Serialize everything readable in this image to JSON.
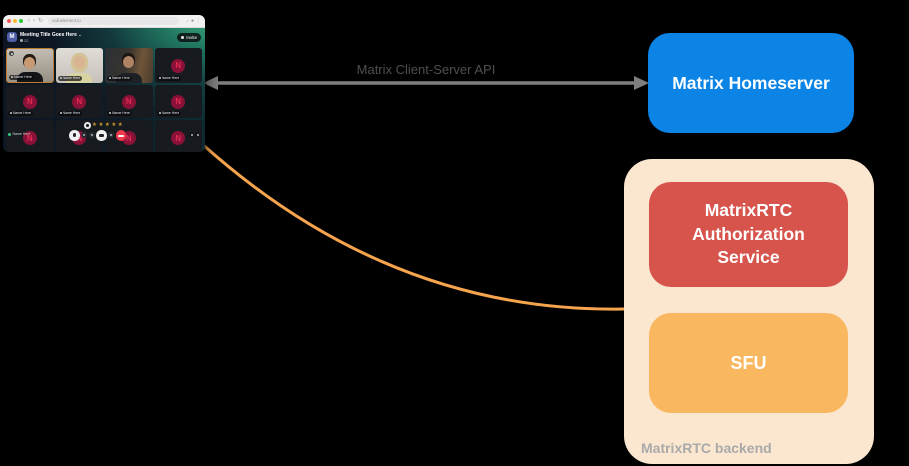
{
  "palette": {
    "blue": "#0b84e6",
    "red": "#d6544c",
    "orange": "#f9b85f",
    "peach": "#fbe7d0",
    "curve_orange": "#f6a54e",
    "arrow_gray": "#7f7f7f",
    "api_label_gray": "#4f4f4f",
    "backend_label_gray": "#a9a9a9",
    "avatar_bg": "#8a1238",
    "avatar_letter": "#e42a52",
    "active_border": "#bd7b2e",
    "hangup_red": "#ef3a4a",
    "star_gold": "#c9972c",
    "live_green": "#2bc98a"
  },
  "diagram": {
    "homeserver_label": "Matrix Homeserver",
    "api_arrow_label": "Matrix Client-Server API",
    "backend": {
      "container_label": "MatrixRTC backend",
      "auth_label": "MatrixRTC Authorization Service",
      "sfu_label": "SFU"
    }
  },
  "browser": {
    "url": "call.element.io",
    "back_icon": "‹",
    "forward_icon": "›",
    "reload_icon": "↻",
    "download_icon": "↓",
    "profile_icon": "●",
    "menu_icon": "⋮"
  },
  "call_app": {
    "room_avatar_letter": "M",
    "room_title": "Meeting Title Goes Here",
    "title_chevron": "⌄",
    "participant_count": "22",
    "invite_button_label": "Invite",
    "reactions": {
      "star_glyph": "★",
      "star_count": 5
    },
    "tiles": [
      {
        "kind": "video",
        "variant": "p1",
        "name": "Name Here",
        "active": true,
        "muted": true
      },
      {
        "kind": "video",
        "variant": "p2",
        "name": "Name Here"
      },
      {
        "kind": "video",
        "variant": "p3",
        "name": "Name Here"
      },
      {
        "kind": "avatar",
        "letter": "N",
        "name": "Name Here"
      },
      {
        "kind": "avatar",
        "letter": "N",
        "name": "Name Here"
      },
      {
        "kind": "avatar",
        "letter": "N",
        "name": "Name Here"
      },
      {
        "kind": "avatar",
        "letter": "N",
        "name": "Name Here"
      },
      {
        "kind": "avatar",
        "letter": "N",
        "name": "Name Here"
      },
      {
        "kind": "avatar",
        "letter": "N",
        "live": true,
        "live_label": "Name Here"
      },
      {
        "kind": "avatar",
        "letter": "N"
      },
      {
        "kind": "avatar",
        "letter": "N"
      },
      {
        "kind": "avatar",
        "letter": "N",
        "badges": 2
      }
    ],
    "controls": [
      {
        "type": "mic"
      },
      {
        "type": "option"
      },
      {
        "type": "option"
      },
      {
        "type": "camera"
      },
      {
        "type": "option"
      },
      {
        "type": "hangup"
      }
    ]
  }
}
